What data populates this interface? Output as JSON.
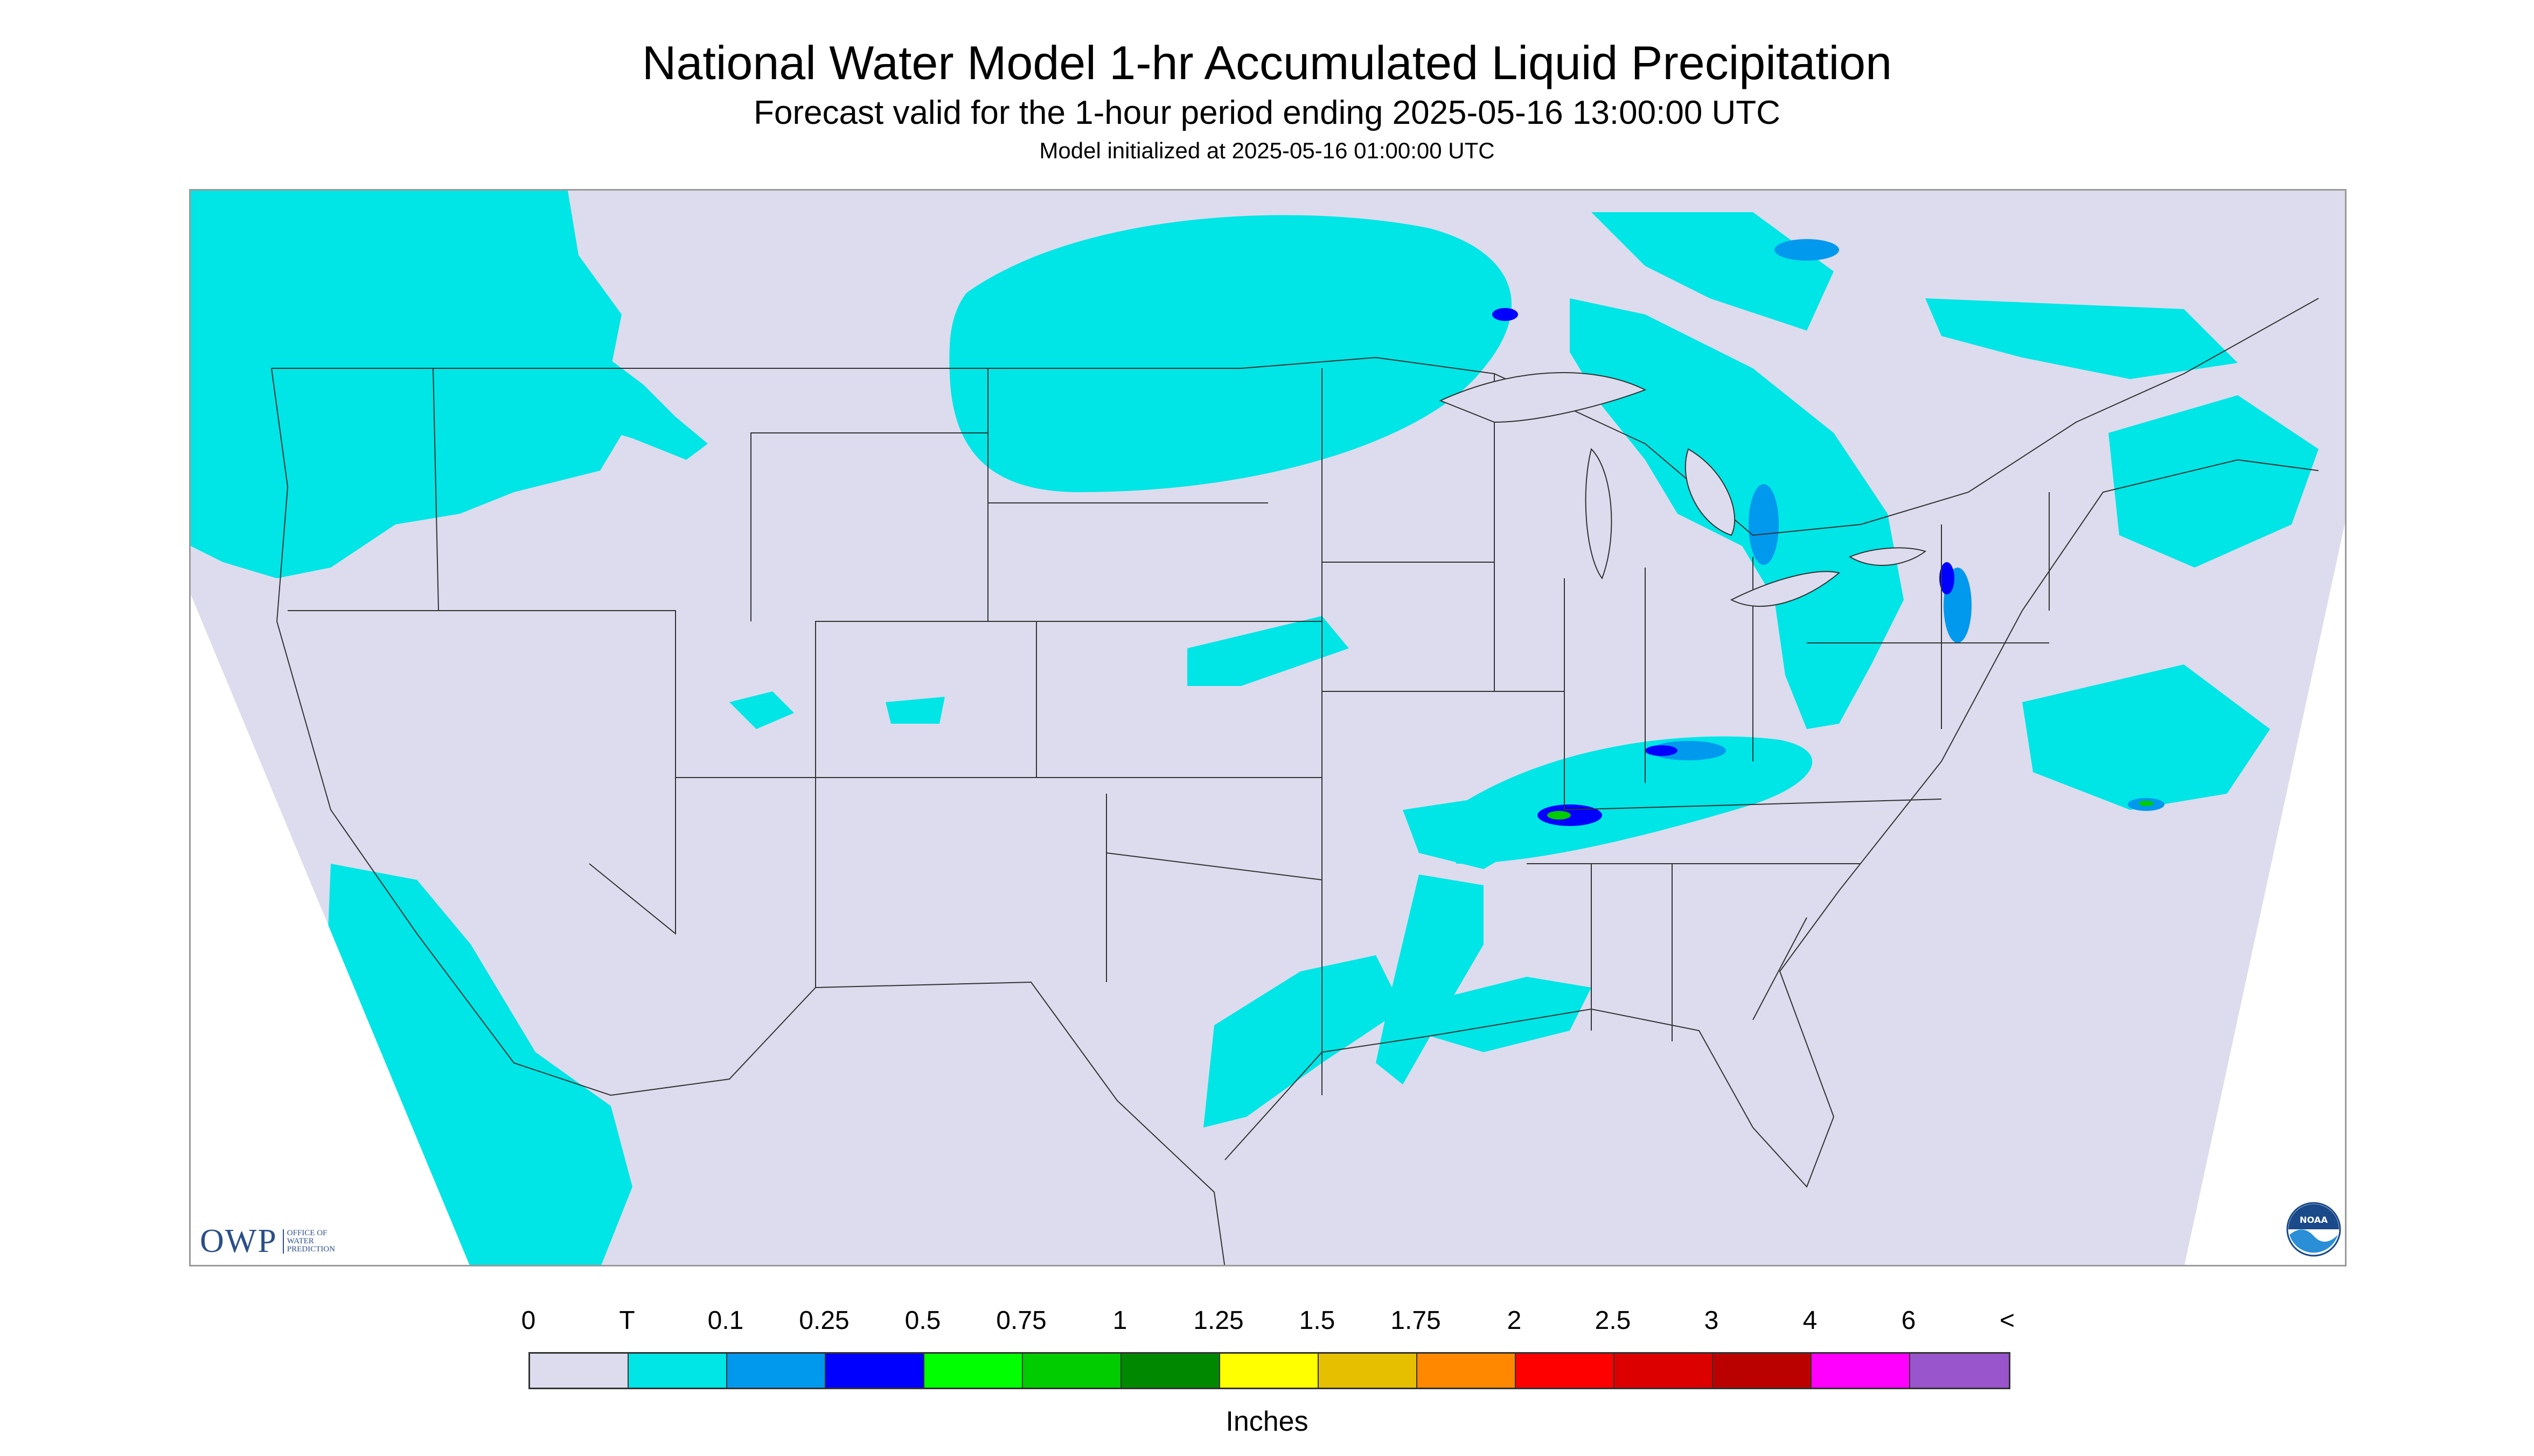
{
  "header": {
    "title": "National Water Model 1-hr Accumulated Liquid Precipitation",
    "subtitle": "Forecast valid for the 1-hour period ending 2025-05-16 13:00:00 UTC",
    "init_line": "Model initialized at 2025-05-16 01:00:00 UTC"
  },
  "map": {
    "background_color": "#dcdcee",
    "outside_color": "#ffffff",
    "trace_color": "#00e5e5",
    "boundary_color": "#333333"
  },
  "logos": {
    "owp": {
      "text": "OWP",
      "sub": [
        "OFFICE OF",
        "WATER",
        "PREDICTION"
      ]
    },
    "noaa": {
      "text": "NOAA"
    }
  },
  "legend": {
    "labels": [
      "0",
      "T",
      "0.1",
      "0.25",
      "0.5",
      "0.75",
      "1",
      "1.25",
      "1.5",
      "1.75",
      "2",
      "2.5",
      "3",
      "4",
      "6",
      "<"
    ],
    "colors": [
      "#dcdcee",
      "#00e5e5",
      "#0099ee",
      "#0000ff",
      "#00ff00",
      "#00cc00",
      "#008800",
      "#ffff00",
      "#e5bf00",
      "#ff8800",
      "#ff0000",
      "#dd0000",
      "#bb0000",
      "#ff00ff",
      "#9955cc"
    ],
    "units": "Inches"
  }
}
